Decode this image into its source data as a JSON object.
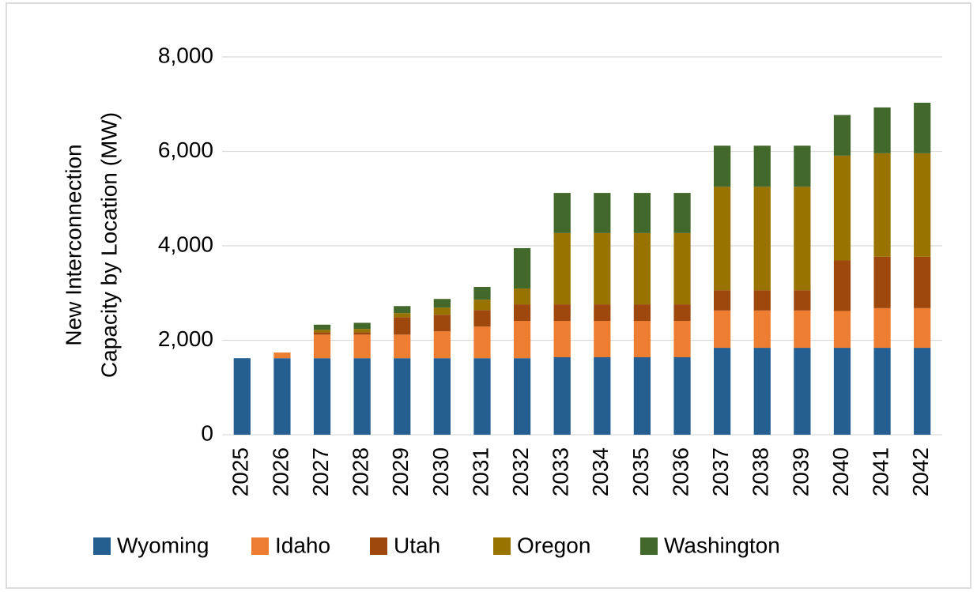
{
  "chart_data": {
    "type": "stacked_bar",
    "y_label": [
      "New Interconnection",
      "Capacity by Location (MW)"
    ],
    "categories": [
      "2025",
      "2026",
      "2027",
      "2028",
      "2029",
      "2030",
      "2031",
      "2032",
      "2033",
      "2034",
      "2035",
      "2036",
      "2037",
      "2038",
      "2039",
      "2040",
      "2041",
      "2042"
    ],
    "series": [
      {
        "name": "Wyoming",
        "color": "#255e91",
        "values": [
          1620,
          1620,
          1620,
          1620,
          1620,
          1620,
          1620,
          1620,
          1640,
          1640,
          1640,
          1640,
          1840,
          1840,
          1840,
          1840,
          1840,
          1840
        ]
      },
      {
        "name": "Idaho",
        "color": "#ed7d31",
        "values": [
          0,
          120,
          500,
          500,
          500,
          570,
          670,
          790,
          770,
          770,
          770,
          770,
          790,
          790,
          790,
          780,
          840,
          840
        ]
      },
      {
        "name": "Utah",
        "color": "#9e480e",
        "values": [
          0,
          0,
          50,
          50,
          370,
          350,
          350,
          350,
          350,
          350,
          350,
          350,
          430,
          430,
          430,
          1070,
          1090,
          1090
        ]
      },
      {
        "name": "Oregon",
        "color": "#997300",
        "values": [
          0,
          0,
          50,
          70,
          84,
          150,
          220,
          335,
          1510,
          1510,
          1510,
          1510,
          2190,
          2190,
          2190,
          2220,
          2190,
          2190
        ]
      },
      {
        "name": "Washington",
        "color": "#43682b",
        "values": [
          0,
          0,
          110,
          130,
          150,
          185,
          270,
          855,
          850,
          850,
          850,
          850,
          870,
          870,
          870,
          860,
          970,
          1070
        ]
      }
    ],
    "ylim": [
      0,
      8000
    ],
    "yticks": [
      0,
      {
        "value": 2000,
        "label": "2,000"
      },
      {
        "value": 4000,
        "label": "4,000"
      },
      {
        "value": 6000,
        "label": "6,000"
      },
      {
        "value": 8000,
        "label": "8,000"
      }
    ],
    "grid": true,
    "legend": "bottom"
  }
}
